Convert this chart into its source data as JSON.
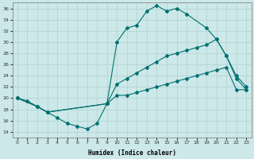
{
  "xlabel": "Humidex (Indice chaleur)",
  "bg_color": "#cce8e8",
  "line_color": "#007070",
  "grid_color": "#b0d0d0",
  "xlim": [
    -0.5,
    23.5
  ],
  "ylim": [
    13,
    37
  ],
  "yticks": [
    14,
    16,
    18,
    20,
    22,
    24,
    26,
    28,
    30,
    32,
    34,
    36
  ],
  "xticks": [
    0,
    1,
    2,
    3,
    4,
    5,
    6,
    7,
    8,
    9,
    10,
    11,
    12,
    13,
    14,
    15,
    16,
    17,
    18,
    19,
    20,
    21,
    22,
    23
  ],
  "curve_hump_x": [
    0,
    2,
    3,
    9,
    10,
    11,
    12,
    13,
    14,
    15,
    16,
    17,
    19,
    20,
    21,
    22,
    23
  ],
  "curve_hump_y": [
    20.0,
    18.5,
    17.5,
    19.0,
    30.0,
    32.5,
    33.0,
    35.5,
    36.5,
    35.5,
    36.0,
    35.0,
    32.5,
    30.5,
    27.5,
    24.0,
    22.0
  ],
  "curve_mid_x": [
    0,
    2,
    3,
    9,
    10,
    11,
    12,
    13,
    14,
    15,
    16,
    17,
    18,
    19,
    20,
    21,
    22,
    23
  ],
  "curve_mid_y": [
    20.0,
    18.5,
    17.5,
    19.0,
    22.5,
    23.5,
    24.5,
    25.5,
    26.5,
    27.5,
    28.0,
    28.5,
    29.0,
    29.5,
    30.5,
    27.5,
    23.5,
    21.5
  ],
  "curve_bot_x": [
    0,
    1,
    2,
    3,
    4,
    5,
    6,
    7,
    8,
    9,
    10,
    11,
    12,
    13,
    14,
    15,
    16,
    17,
    18,
    19,
    20,
    21,
    22,
    23
  ],
  "curve_bot_y": [
    20.0,
    19.5,
    18.5,
    17.5,
    16.5,
    15.5,
    15.0,
    14.5,
    15.5,
    19.0,
    20.5,
    20.5,
    21.0,
    21.5,
    22.0,
    22.5,
    23.0,
    23.5,
    24.0,
    24.5,
    25.0,
    25.5,
    21.5,
    21.5
  ]
}
